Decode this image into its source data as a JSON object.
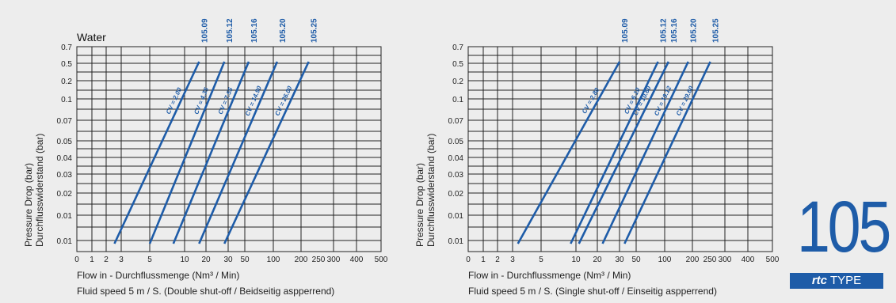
{
  "chart_data": [
    {
      "type": "line",
      "title": "Water",
      "ylabel_line1": "Pressure Drop (bar)",
      "ylabel_line2": "Durchflusswiderstand (bar)",
      "xlabel": "Flow in - Durchflussmenge (Nm³ / Min)",
      "caption": "Fluid speed 5 m / S. (Double shut-off / Beidseitig aspperrend)",
      "x_ticks": [
        "0",
        "1",
        "2",
        "3",
        "5",
        "10",
        "20",
        "30",
        "50",
        "100",
        "200",
        "250",
        "300",
        "400",
        "500"
      ],
      "y_ticks": [
        "0.7",
        "0.5",
        "0.2",
        "0.1",
        "0.07",
        "0.05",
        "0.04",
        "0.03",
        "0.02",
        "0.01",
        "0.01"
      ],
      "series": [
        {
          "name": "105.09",
          "cv_label": "CV = 2.00",
          "x": [
            2.5,
            16
          ],
          "y": [
            0.01,
            0.5
          ]
        },
        {
          "name": "105.12",
          "cv_label": "CV = 4.35",
          "x": [
            5,
            28
          ],
          "y": [
            0.01,
            0.5
          ]
        },
        {
          "name": "105.16",
          "cv_label": "CV = 7.55",
          "x": [
            8,
            55
          ],
          "y": [
            0.01,
            0.5
          ]
        },
        {
          "name": "105.20",
          "cv_label": "CV = 14.90",
          "x": [
            16,
            110
          ],
          "y": [
            0.01,
            0.5
          ]
        },
        {
          "name": "105.25",
          "cv_label": "CV = 26.00",
          "x": [
            28,
            220
          ],
          "y": [
            0.01,
            0.5
          ]
        }
      ]
    },
    {
      "type": "line",
      "title": "",
      "ylabel_line1": "Pressure Drop (bar)",
      "ylabel_line2": "Durchflusswiderstand (bar)",
      "xlabel": "Flow in - Durchflussmenge (Nm³ / Min)",
      "caption": "Fluid speed 5 m / S. (Single shut-off / Einseitig aspperrend)",
      "x_ticks": [
        "0",
        "1",
        "2",
        "3",
        "5",
        "10",
        "20",
        "30",
        "50",
        "100",
        "200",
        "250",
        "300",
        "400",
        "500"
      ],
      "y_ticks": [
        "0.7",
        "0.5",
        "0.2",
        "0.1",
        "0.07",
        "0.05",
        "0.04",
        "0.03",
        "0.02",
        "0.01",
        "0.01"
      ],
      "series": [
        {
          "name": "105.09",
          "cv_label": "CV = 2.80",
          "x": [
            3.3,
            30
          ],
          "y": [
            0.01,
            0.5
          ]
        },
        {
          "name": "105.12",
          "cv_label": "CV = 6.10",
          "x": [
            9,
            85
          ],
          "y": [
            0.01,
            0.5
          ]
        },
        {
          "name": "105.16",
          "cv_label": "CV = 10.60",
          "x": [
            11,
            110
          ],
          "y": [
            0.01,
            0.5
          ]
        },
        {
          "name": "105.20",
          "cv_label": "CV = 19.12",
          "x": [
            22,
            180
          ],
          "y": [
            0.01,
            0.5
          ]
        },
        {
          "name": "105.25",
          "cv_label": "CV = 29.60",
          "x": [
            35,
            250
          ],
          "y": [
            0.01,
            0.5
          ]
        }
      ]
    }
  ],
  "logo": {
    "number": "105",
    "brand": "rtc",
    "type_label": "TYPE"
  },
  "colors": {
    "line": "#1e5ca8",
    "grid": "#222222",
    "background": "#ededed"
  }
}
